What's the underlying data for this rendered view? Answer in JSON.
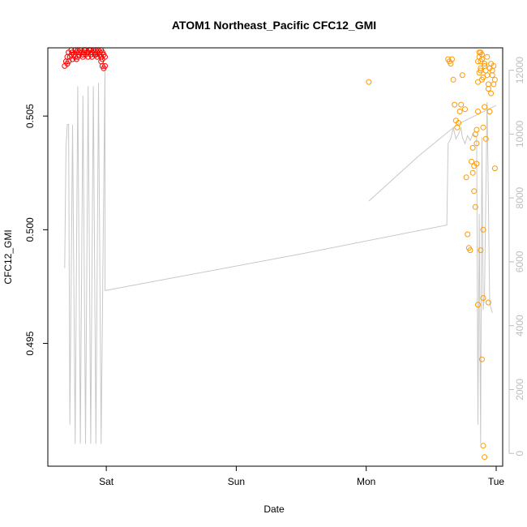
{
  "chart_data": {
    "type": "scatter",
    "title": "ATOM1 Northeast_Pacific CFC12_GMI",
    "xlabel": "Date",
    "ylabel": "CFC12_GMI",
    "x_unit": "days",
    "x_ticks": [
      {
        "value": 1,
        "label": "Sat"
      },
      {
        "value": 2,
        "label": "Sun"
      },
      {
        "value": 3,
        "label": "Mon"
      },
      {
        "value": 4,
        "label": "Tue"
      }
    ],
    "xlim": [
      0.55,
      4.05
    ],
    "ylim": [
      0.4896,
      0.508
    ],
    "y_ticks": [
      {
        "value": 0.495,
        "label": "0.495"
      },
      {
        "value": 0.5,
        "label": "0.500"
      },
      {
        "value": 0.505,
        "label": "0.505"
      }
    ],
    "y2lim": [
      -400,
      12700
    ],
    "y2_ticks": [
      {
        "value": 0,
        "label": "0"
      },
      {
        "value": 2000,
        "label": "2000"
      },
      {
        "value": 4000,
        "label": "4000"
      },
      {
        "value": 6000,
        "label": "6000"
      },
      {
        "value": 8000,
        "label": "8000"
      },
      {
        "value": 10000,
        "label": "10000"
      },
      {
        "value": 12000,
        "label": "12000"
      }
    ],
    "colors": {
      "series_red": "#ff0000",
      "series_orange": "#ff9900",
      "altitude_line": "#c8c8c8",
      "right_axis": "#bdbdbd",
      "frame": "#000000"
    },
    "series": [
      {
        "color": "#ff0000",
        "points": [
          [
            0.68,
            0.5072
          ],
          [
            0.69,
            0.5074
          ],
          [
            0.7,
            0.5076
          ],
          [
            0.71,
            0.5078
          ],
          [
            0.72,
            0.5076
          ],
          [
            0.73,
            0.5079
          ],
          [
            0.74,
            0.5078
          ],
          [
            0.75,
            0.5077
          ],
          [
            0.76,
            0.5079
          ],
          [
            0.77,
            0.5078
          ],
          [
            0.78,
            0.5076
          ],
          [
            0.79,
            0.5078
          ],
          [
            0.8,
            0.5079
          ],
          [
            0.81,
            0.5078
          ],
          [
            0.82,
            0.5077
          ],
          [
            0.83,
            0.5078
          ],
          [
            0.84,
            0.5079
          ],
          [
            0.85,
            0.5078
          ],
          [
            0.86,
            0.5078
          ],
          [
            0.87,
            0.5079
          ],
          [
            0.88,
            0.5077
          ],
          [
            0.89,
            0.5078
          ],
          [
            0.9,
            0.5079
          ],
          [
            0.91,
            0.5078
          ],
          [
            0.92,
            0.5077
          ],
          [
            0.93,
            0.5078
          ],
          [
            0.94,
            0.5079
          ],
          [
            0.95,
            0.5078
          ],
          [
            0.96,
            0.5076
          ],
          [
            0.97,
            0.5075
          ],
          [
            0.71,
            0.5074
          ],
          [
            0.74,
            0.5075
          ],
          [
            0.76,
            0.5076
          ],
          [
            0.77,
            0.5075
          ],
          [
            0.79,
            0.5077
          ],
          [
            0.82,
            0.5076
          ],
          [
            0.84,
            0.5077
          ],
          [
            0.86,
            0.5076
          ],
          [
            0.89,
            0.5076
          ],
          [
            0.91,
            0.5077
          ],
          [
            0.93,
            0.5076
          ],
          [
            0.95,
            0.5077
          ],
          [
            0.96,
            0.5074
          ],
          [
            0.97,
            0.5072
          ],
          [
            0.98,
            0.5071
          ],
          [
            0.99,
            0.5072
          ],
          [
            0.97,
            0.5078
          ],
          [
            0.96,
            0.5079
          ],
          [
            0.92,
            0.5079
          ],
          [
            0.88,
            0.5079
          ],
          [
            0.83,
            0.5079
          ],
          [
            0.78,
            0.5079
          ],
          [
            0.73,
            0.5077
          ],
          [
            0.98,
            0.5077
          ],
          [
            0.99,
            0.5076
          ],
          [
            0.7,
            0.5073
          ]
        ]
      },
      {
        "color": "#ff9900",
        "points": [
          [
            3.02,
            0.5065
          ],
          [
            3.63,
            0.5075
          ],
          [
            3.64,
            0.5074
          ],
          [
            3.65,
            0.5073
          ],
          [
            3.66,
            0.5075
          ],
          [
            3.67,
            0.5066
          ],
          [
            3.68,
            0.5055
          ],
          [
            3.69,
            0.5048
          ],
          [
            3.7,
            0.5045
          ],
          [
            3.71,
            0.5047
          ],
          [
            3.72,
            0.5052
          ],
          [
            3.73,
            0.5055
          ],
          [
            3.74,
            0.5068
          ],
          [
            3.76,
            0.5053
          ],
          [
            3.77,
            0.5023
          ],
          [
            3.78,
            0.4998
          ],
          [
            3.79,
            0.4992
          ],
          [
            3.8,
            0.4991
          ],
          [
            3.81,
            0.503
          ],
          [
            3.82,
            0.5025
          ],
          [
            3.83,
            0.5017
          ],
          [
            3.84,
            0.5042
          ],
          [
            3.85,
            0.5044
          ],
          [
            3.86,
            0.5052
          ],
          [
            3.86,
            0.5065
          ],
          [
            3.87,
            0.5069
          ],
          [
            3.88,
            0.507
          ],
          [
            3.88,
            0.5074
          ],
          [
            3.89,
            0.5077
          ],
          [
            3.89,
            0.5066
          ],
          [
            3.9,
            0.5045
          ],
          [
            3.9,
            0.497
          ],
          [
            3.91,
            0.5054
          ],
          [
            3.92,
            0.504
          ],
          [
            3.93,
            0.5076
          ],
          [
            3.94,
            0.5064
          ],
          [
            3.95,
            0.5052
          ],
          [
            3.96,
            0.506
          ],
          [
            3.97,
            0.5068
          ],
          [
            3.98,
            0.5072
          ],
          [
            3.99,
            0.5066
          ],
          [
            3.82,
            0.5036
          ],
          [
            3.83,
            0.5028
          ],
          [
            3.84,
            0.501
          ],
          [
            3.85,
            0.5038
          ],
          [
            3.86,
            0.5074
          ],
          [
            3.87,
            0.5078
          ],
          [
            3.88,
            0.5078
          ],
          [
            3.89,
            0.5075
          ],
          [
            3.9,
            0.5067
          ],
          [
            3.91,
            0.5072
          ],
          [
            3.92,
            0.507
          ],
          [
            3.93,
            0.5068
          ],
          [
            3.94,
            0.5062
          ],
          [
            3.95,
            0.5071
          ],
          [
            3.96,
            0.5073
          ],
          [
            3.97,
            0.507
          ],
          [
            3.98,
            0.5064
          ],
          [
            3.99,
            0.5027
          ],
          [
            3.85,
            0.5029
          ],
          [
            3.86,
            0.4967
          ],
          [
            3.88,
            0.4991
          ],
          [
            3.89,
            0.4943
          ],
          [
            3.9,
            0.5
          ],
          [
            3.91,
            0.49
          ],
          [
            3.9,
            0.4905
          ],
          [
            3.94,
            0.4968
          ],
          [
            3.87,
            0.5076
          ],
          [
            3.88,
            0.5071
          ],
          [
            3.91,
            0.5073
          ]
        ]
      }
    ],
    "altitude_line": {
      "color": "#c8c8c8",
      "segments": [
        [
          [
            0.68,
            5800
          ],
          [
            0.69,
            9600
          ],
          [
            0.7,
            10300
          ],
          [
            0.71,
            10300
          ],
          [
            0.72,
            900
          ],
          [
            0.74,
            10300
          ],
          [
            0.76,
            300
          ],
          [
            0.78,
            11500
          ],
          [
            0.8,
            300
          ],
          [
            0.82,
            11200
          ],
          [
            0.84,
            300
          ],
          [
            0.86,
            11500
          ],
          [
            0.88,
            300
          ],
          [
            0.9,
            11500
          ],
          [
            0.92,
            300
          ],
          [
            0.94,
            11600
          ],
          [
            0.96,
            300
          ],
          [
            0.99,
            12100
          ],
          [
            0.99,
            5100
          ],
          [
            2.5,
            6250
          ],
          [
            3.62,
            7150
          ],
          [
            3.63,
            9700
          ],
          [
            3.65,
            9850
          ],
          [
            3.67,
            10200
          ],
          [
            3.69,
            9850
          ],
          [
            3.71,
            10000
          ],
          [
            3.73,
            10200
          ],
          [
            3.74,
            9900
          ],
          [
            3.76,
            9700
          ],
          [
            3.78,
            9950
          ],
          [
            3.8,
            9800
          ],
          [
            3.82,
            10000
          ],
          [
            3.85,
            9900
          ],
          [
            3.86,
            900
          ],
          [
            3.87,
            7500
          ],
          [
            3.88,
            300
          ],
          [
            3.89,
            9900
          ],
          [
            3.9,
            4500
          ],
          [
            3.91,
            5000
          ],
          [
            3.93,
            11000
          ],
          [
            3.95,
            4700
          ],
          [
            3.97,
            4400
          ]
        ],
        [
          [
            3.02,
            7900
          ],
          [
            3.4,
            9300
          ],
          [
            3.7,
            10300
          ],
          [
            4.0,
            10900
          ]
        ]
      ]
    }
  }
}
